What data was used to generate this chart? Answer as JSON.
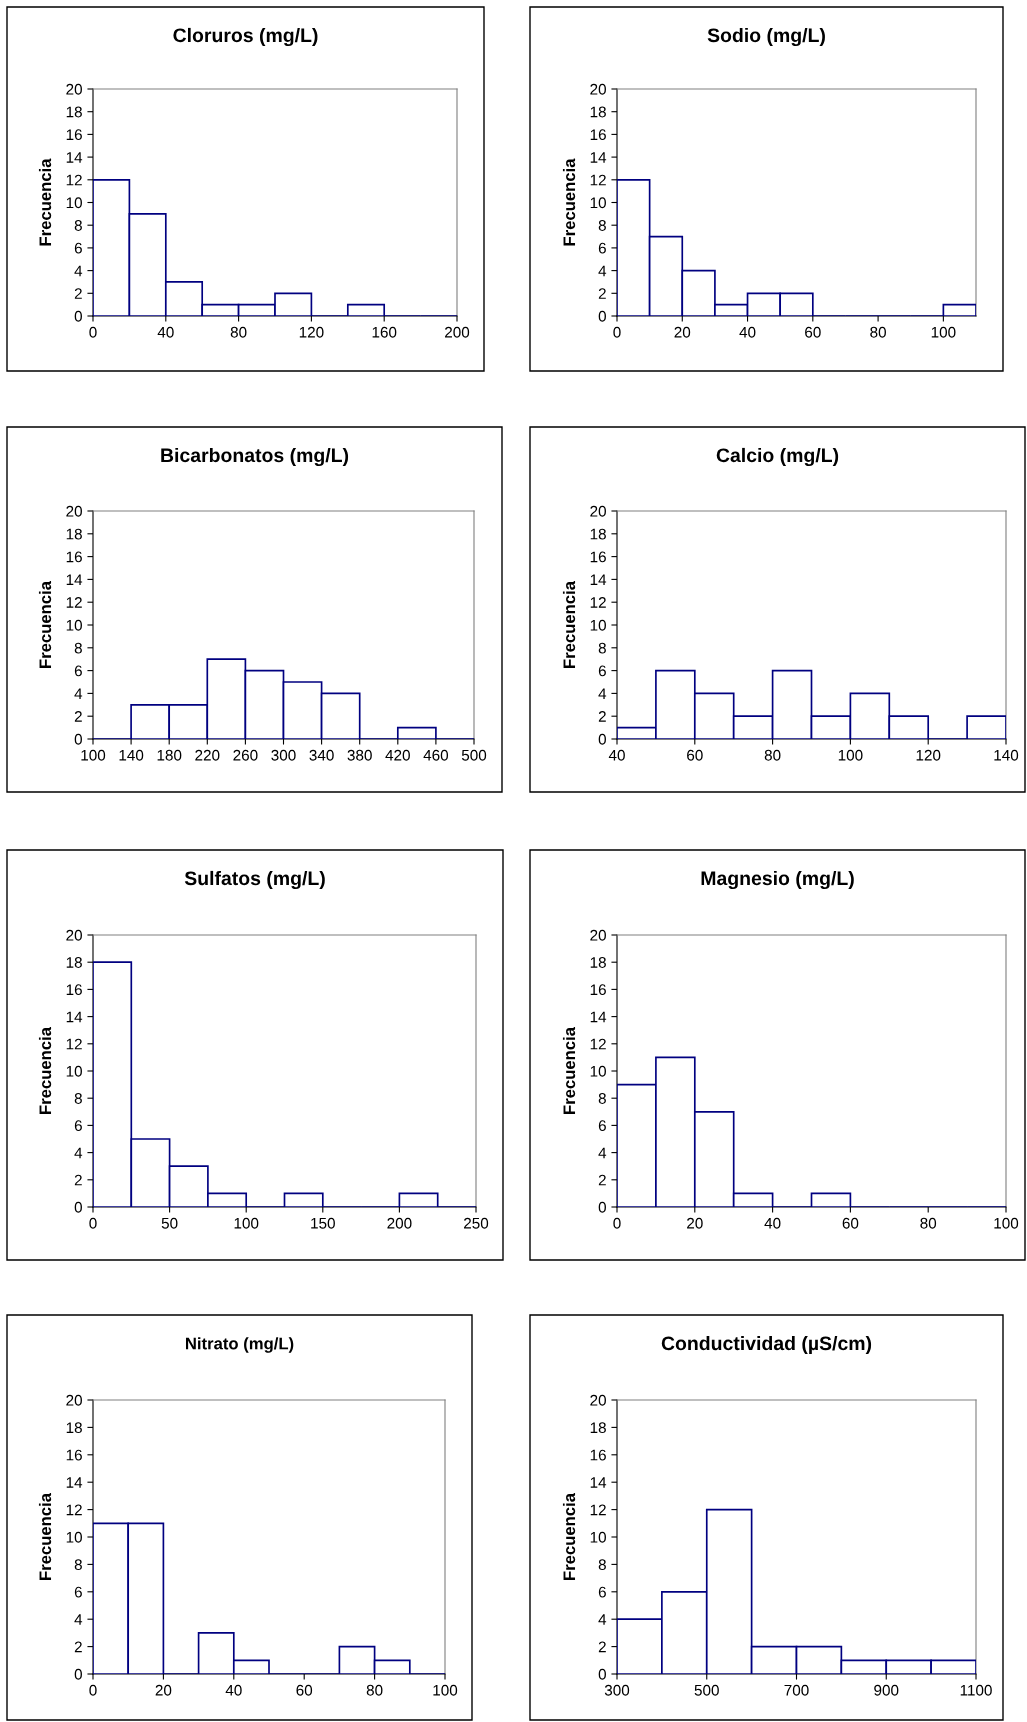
{
  "chart_data": [
    {
      "type": "histogram",
      "title": "Cloruros (mg/L)",
      "ylabel": "Frecuencia",
      "color": "#000080",
      "bins": [
        0,
        20,
        40,
        60,
        80,
        100,
        120,
        140,
        160,
        180,
        200
      ],
      "values": [
        12,
        9,
        3,
        1,
        1,
        2,
        0,
        1,
        0,
        0
      ],
      "xlim": [
        0,
        200
      ],
      "xticks": [
        0,
        40,
        80,
        120,
        160,
        200
      ],
      "ylim": [
        0,
        20
      ],
      "yticks": [
        0,
        2,
        4,
        6,
        8,
        10,
        12,
        14,
        16,
        18,
        20
      ]
    },
    {
      "type": "histogram",
      "title": "Sodio (mg/L)",
      "ylabel": "Frecuencia",
      "color": "#000080",
      "bins": [
        0,
        10,
        20,
        30,
        40,
        50,
        60,
        70,
        80,
        90,
        100,
        110
      ],
      "values": [
        12,
        7,
        4,
        1,
        2,
        2,
        0,
        0,
        0,
        0,
        1
      ],
      "xlim": [
        0,
        110
      ],
      "xticks": [
        0,
        20,
        40,
        60,
        80,
        100
      ],
      "ylim": [
        0,
        20
      ],
      "yticks": [
        0,
        2,
        4,
        6,
        8,
        10,
        12,
        14,
        16,
        18,
        20
      ]
    },
    {
      "type": "histogram",
      "title": "Bicarbonatos (mg/L)",
      "ylabel": "Frecuencia",
      "color": "#000080",
      "bins": [
        100,
        140,
        180,
        220,
        260,
        300,
        340,
        380,
        420,
        460,
        500
      ],
      "values": [
        0,
        3,
        3,
        7,
        6,
        5,
        4,
        0,
        1,
        0
      ],
      "xlim": [
        100,
        500
      ],
      "xticks": [
        100,
        140,
        180,
        220,
        260,
        300,
        340,
        380,
        420,
        460,
        500
      ],
      "ylim": [
        0,
        20
      ],
      "yticks": [
        0,
        2,
        4,
        6,
        8,
        10,
        12,
        14,
        16,
        18,
        20
      ]
    },
    {
      "type": "histogram",
      "title": "Calcio (mg/L)",
      "ylabel": "Frecuencia",
      "color": "#000080",
      "bins": [
        40,
        50,
        60,
        70,
        80,
        90,
        100,
        110,
        120,
        130,
        140
      ],
      "values": [
        1,
        6,
        4,
        2,
        6,
        2,
        4,
        2,
        0,
        2
      ],
      "xlim": [
        40,
        140
      ],
      "xticks": [
        40,
        60,
        80,
        100,
        120,
        140
      ],
      "ylim": [
        0,
        20
      ],
      "yticks": [
        0,
        2,
        4,
        6,
        8,
        10,
        12,
        14,
        16,
        18,
        20
      ]
    },
    {
      "type": "histogram",
      "title": "Sulfatos (mg/L)",
      "ylabel": "Frecuencia",
      "color": "#000080",
      "bins": [
        0,
        25,
        50,
        75,
        100,
        125,
        150,
        175,
        200,
        225,
        250
      ],
      "values": [
        18,
        5,
        3,
        1,
        0,
        1,
        0,
        0,
        1,
        0
      ],
      "xlim": [
        0,
        250
      ],
      "xticks": [
        0,
        50,
        100,
        150,
        200,
        250
      ],
      "ylim": [
        0,
        20
      ],
      "yticks": [
        0,
        2,
        4,
        6,
        8,
        10,
        12,
        14,
        16,
        18,
        20
      ]
    },
    {
      "type": "histogram",
      "title": "Magnesio (mg/L)",
      "ylabel": "Frecuencia",
      "color": "#000080",
      "bins": [
        0,
        10,
        20,
        30,
        40,
        50,
        60,
        70,
        80,
        90,
        100
      ],
      "values": [
        9,
        11,
        7,
        1,
        0,
        1,
        0,
        0,
        0,
        0
      ],
      "xlim": [
        0,
        100
      ],
      "xticks": [
        0,
        20,
        40,
        60,
        80,
        100
      ],
      "ylim": [
        0,
        20
      ],
      "yticks": [
        0,
        2,
        4,
        6,
        8,
        10,
        12,
        14,
        16,
        18,
        20
      ]
    },
    {
      "type": "histogram",
      "title": "Nitrato (mg/L)",
      "ylabel": "Frecuencia",
      "color": "#000080",
      "bins": [
        0,
        10,
        20,
        30,
        40,
        50,
        60,
        70,
        80,
        90,
        100
      ],
      "values": [
        11,
        11,
        0,
        3,
        1,
        0,
        0,
        2,
        1,
        0
      ],
      "xlim": [
        0,
        100
      ],
      "xticks": [
        0,
        20,
        40,
        60,
        80,
        100
      ],
      "ylim": [
        0,
        20
      ],
      "yticks": [
        0,
        2,
        4,
        6,
        8,
        10,
        12,
        14,
        16,
        18,
        20
      ]
    },
    {
      "type": "histogram",
      "title": "Conductividad (µS/cm)",
      "ylabel": "Frecuencia",
      "color": "#000080",
      "bins": [
        300,
        400,
        500,
        600,
        700,
        800,
        900,
        1000,
        1100
      ],
      "values": [
        4,
        6,
        12,
        2,
        2,
        1,
        1,
        1
      ],
      "xlim": [
        300,
        1100
      ],
      "xticks": [
        300,
        500,
        700,
        900,
        1100
      ],
      "ylim": [
        0,
        20
      ],
      "yticks": [
        0,
        2,
        4,
        6,
        8,
        10,
        12,
        14,
        16,
        18,
        20
      ]
    }
  ]
}
